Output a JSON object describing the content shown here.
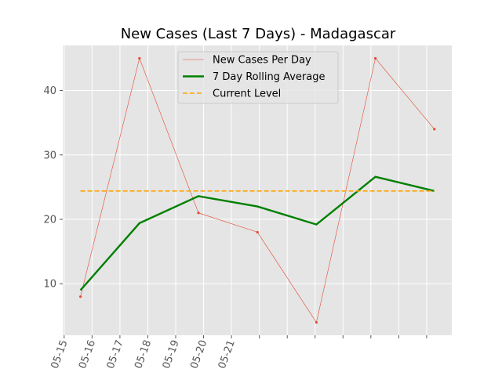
{
  "chart_data": {
    "type": "line",
    "title": "New Cases (Last 7 Days) - Madagascar",
    "xlabel": "",
    "ylabel": "",
    "x_tick_labels": [
      "05-15",
      "05-16",
      "05-17",
      "05-18",
      "05-19",
      "05-20",
      "05-21"
    ],
    "x_dates": [
      "05-15",
      "05-16",
      "05-17",
      "05-18",
      "05-19",
      "05-20",
      "05-21"
    ],
    "ylim": [
      2,
      47
    ],
    "y_ticks": [
      10,
      20,
      30,
      40
    ],
    "grid": true,
    "legend_position": "top-center",
    "series": [
      {
        "name": "New Cases Per Day",
        "style": "thin-line-with-points",
        "color": "#E24A33",
        "x": [
          "05-15",
          "05-16",
          "05-17",
          "05-18",
          "05-19",
          "05-20",
          "05-21"
        ],
        "values": [
          8,
          45,
          21,
          18,
          4,
          45,
          34
        ]
      },
      {
        "name": "7 Day Rolling Average",
        "style": "thick-line",
        "color": "#008000",
        "x": [
          "05-15",
          "05-16",
          "05-17",
          "05-18",
          "05-19",
          "05-20",
          "05-21"
        ],
        "values": [
          9,
          19.4,
          23.6,
          22,
          19.2,
          26.6,
          24.4
        ]
      },
      {
        "name": "Current Level",
        "style": "dashed-line",
        "color": "#FFA500",
        "x": [
          "05-15",
          "05-21"
        ],
        "values": [
          24.4,
          24.4
        ]
      }
    ]
  }
}
